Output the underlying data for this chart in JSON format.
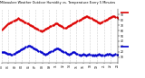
{
  "title": "Milwaukee Weather Outdoor Humidity vs. Temperature Every 5 Minutes",
  "background_color": "#ffffff",
  "grid_color": "#aaaaaa",
  "red_color": "#dd0000",
  "blue_color": "#0000cc",
  "right_yticks": [
    90,
    80,
    70,
    60,
    50,
    40,
    30,
    20,
    10
  ],
  "right_ytick_labels": [
    "90",
    "80",
    "70",
    "60",
    "50",
    "40",
    "30",
    "20",
    "10"
  ],
  "ylim": [
    0,
    100
  ],
  "n_points": 120,
  "temp_data": [
    62,
    63,
    65,
    67,
    69,
    70,
    72,
    73,
    74,
    75,
    76,
    77,
    78,
    79,
    80,
    81,
    82,
    83,
    82,
    81,
    80,
    79,
    78,
    77,
    76,
    75,
    74,
    73,
    72,
    71,
    70,
    69,
    68,
    67,
    66,
    65,
    64,
    63,
    62,
    61,
    60,
    59,
    60,
    61,
    62,
    63,
    64,
    65,
    66,
    67,
    68,
    69,
    70,
    71,
    72,
    73,
    74,
    73,
    72,
    71,
    70,
    69,
    68,
    67,
    66,
    65,
    66,
    67,
    68,
    69,
    70,
    71,
    72,
    73,
    74,
    75,
    76,
    77,
    78,
    79,
    80,
    81,
    82,
    83,
    84,
    85,
    86,
    87,
    87,
    86,
    85,
    84,
    83,
    82,
    81,
    80,
    79,
    78,
    77,
    76,
    75,
    74,
    75,
    76,
    77,
    78,
    79,
    80,
    81,
    82,
    83,
    84,
    85,
    86,
    87,
    88,
    87,
    86,
    85,
    84
  ],
  "hum_data": [
    20,
    20,
    19,
    19,
    18,
    18,
    17,
    17,
    16,
    16,
    15,
    15,
    16,
    17,
    18,
    19,
    20,
    21,
    22,
    23,
    24,
    25,
    26,
    27,
    28,
    29,
    30,
    31,
    32,
    31,
    30,
    29,
    28,
    27,
    26,
    25,
    24,
    23,
    22,
    21,
    20,
    19,
    18,
    17,
    16,
    15,
    16,
    17,
    18,
    19,
    20,
    21,
    22,
    23,
    24,
    25,
    26,
    27,
    26,
    25,
    24,
    23,
    22,
    21,
    20,
    19,
    18,
    17,
    16,
    15,
    16,
    17,
    18,
    19,
    20,
    19,
    18,
    17,
    16,
    15,
    14,
    13,
    14,
    15,
    16,
    15,
    14,
    13,
    14,
    15,
    16,
    15,
    14,
    13,
    14,
    13,
    14,
    13,
    14,
    15,
    16,
    15,
    14,
    13,
    14,
    13,
    14,
    15,
    16,
    15,
    17,
    16,
    15,
    14,
    13,
    14,
    15,
    16,
    15,
    14
  ]
}
